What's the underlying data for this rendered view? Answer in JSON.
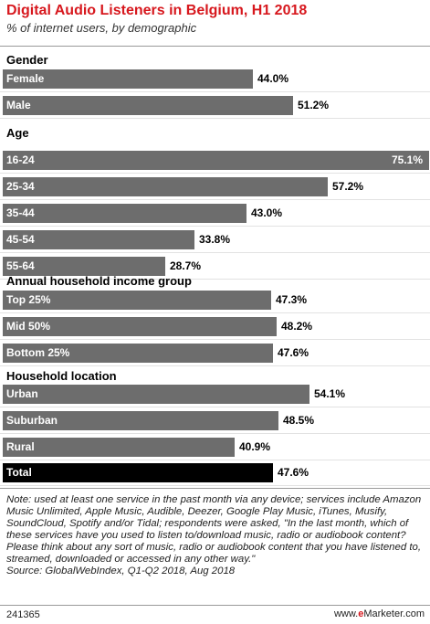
{
  "title": "Digital Audio Listeners in Belgium, H1 2018",
  "subtitle": "% of internet users, by demographic",
  "note": "Note: used at least one service in the past month via any device; services include Amazon Music Unlimited, Apple Music, Audible, Deezer, Google Play Music, iTunes, Musify, SoundCloud, Spotify and/or Tidal; respondents were asked, \"In the last month, which of these services have you used to listen to/download music, radio or audiobook content? Please think about any sort of music, radio or audiobook content that you have listened to, streamed, downloaded or accessed in any other way.\"",
  "source": "Source: GlobalWebIndex, Q1-Q2 2018, Aug 2018",
  "footer": {
    "chart_id": "241365",
    "brand_prefix": "www.",
    "brand_highlight": "e",
    "brand_suffix": "Marketer.com"
  },
  "chart_data": {
    "type": "bar",
    "orientation": "horizontal",
    "title": "Digital Audio Listeners in Belgium, H1 2018",
    "subtitle": "% of internet users, by demographic",
    "unit": "%",
    "xlim": [
      0,
      75.1
    ],
    "groups": [
      {
        "label": "Gender",
        "items": [
          {
            "category": "Female",
            "value": 44.0,
            "label": "44.0%"
          },
          {
            "category": "Male",
            "value": 51.2,
            "label": "51.2%"
          }
        ]
      },
      {
        "label": "Age",
        "items": [
          {
            "category": "16-24",
            "value": 75.1,
            "label": "75.1%"
          },
          {
            "category": "25-34",
            "value": 57.2,
            "label": "57.2%"
          },
          {
            "category": "35-44",
            "value": 43.0,
            "label": "43.0%"
          },
          {
            "category": "45-54",
            "value": 33.8,
            "label": "33.8%"
          },
          {
            "category": "55-64",
            "value": 28.7,
            "label": "28.7%"
          }
        ]
      },
      {
        "label": "Annual household income group",
        "items": [
          {
            "category": "Top 25%",
            "value": 47.3,
            "label": "47.3%"
          },
          {
            "category": "Mid 50%",
            "value": 48.2,
            "label": "48.2%"
          },
          {
            "category": "Bottom 25%",
            "value": 47.6,
            "label": "47.6%"
          }
        ]
      },
      {
        "label": "Household location",
        "items": [
          {
            "category": "Urban",
            "value": 54.1,
            "label": "54.1%"
          },
          {
            "category": "Suburban",
            "value": 48.5,
            "label": "48.5%"
          },
          {
            "category": "Rural",
            "value": 40.9,
            "label": "40.9%"
          }
        ]
      }
    ],
    "total": {
      "category": "Total",
      "value": 47.6,
      "label": "47.6%"
    },
    "colors": {
      "bar": "#6d6d6d",
      "total_bar": "#000000",
      "title": "#d7181e"
    }
  }
}
